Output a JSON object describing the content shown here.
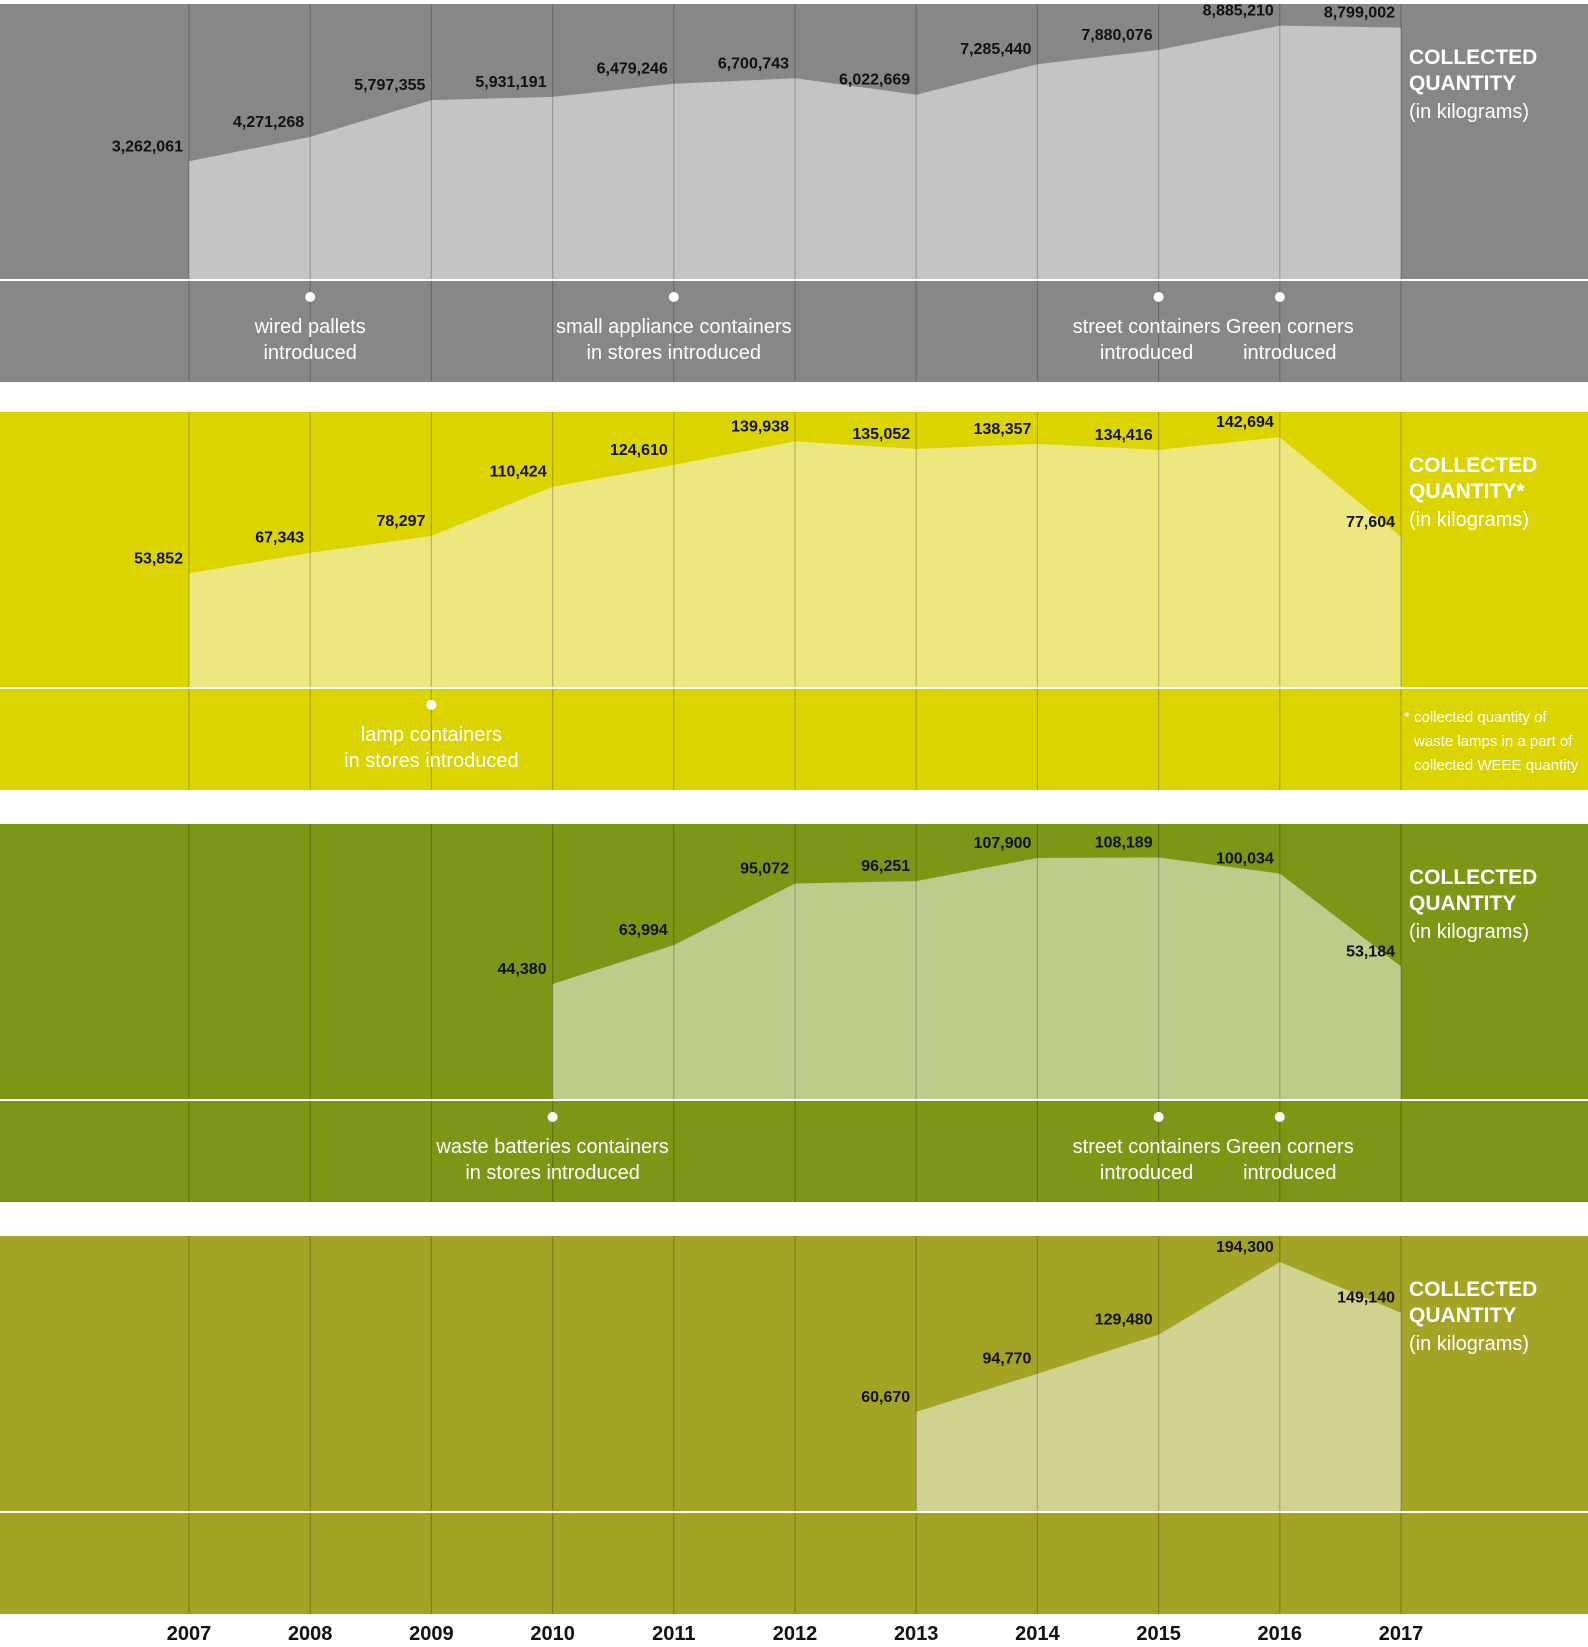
{
  "colors": {
    "panel_bg": [
      "#878787",
      "#dcd400",
      "#7c9716",
      "#a3a325"
    ],
    "area_fill": [
      "#c4c4c4",
      "#ece77f",
      "#bdcc8a",
      "#d2d290"
    ],
    "value_text": "#111111",
    "label_text": "#ffffff"
  },
  "chart_data": [
    {
      "type": "area",
      "title": "COLLECTED QUANTITY",
      "unit": "(in kilograms)",
      "x": [
        2007,
        2008,
        2009,
        2010,
        2011,
        2012,
        2013,
        2014,
        2015,
        2016,
        2017
      ],
      "values": [
        3262061,
        4271268,
        5797355,
        5931191,
        6479246,
        6700743,
        6022669,
        7285440,
        7880076,
        8885210,
        8799002
      ],
      "value_labels": [
        "3,262,061",
        "4,271,268",
        "5,797,355",
        "5,931,191",
        "6,479,246",
        "6,700,743",
        "6,022,669",
        "7,285,440",
        "7,880,076",
        "8,885,210",
        "8,799,002"
      ],
      "milestones": [
        {
          "year": 2008,
          "lines": [
            "wired pallets",
            "introduced"
          ]
        },
        {
          "year": 2011,
          "lines": [
            "small appliance containers",
            "in stores introduced"
          ]
        },
        {
          "year": 2015,
          "lines": [
            "street containers",
            "introduced"
          ]
        },
        {
          "year": 2016,
          "lines": [
            "Green corners",
            "introduced"
          ]
        }
      ]
    },
    {
      "type": "area",
      "title": "COLLECTED QUANTITY*",
      "unit": "(in kilograms)",
      "x": [
        2007,
        2008,
        2009,
        2010,
        2011,
        2012,
        2013,
        2014,
        2015,
        2016,
        2017
      ],
      "values": [
        53852,
        67343,
        78297,
        110424,
        124610,
        139938,
        135052,
        138357,
        134416,
        142694,
        77604
      ],
      "value_labels": [
        "53,852",
        "67,343",
        "78,297",
        "110,424",
        "124,610",
        "139,938",
        "135,052",
        "138,357",
        "134,416",
        "142,694",
        "77,604"
      ],
      "milestones": [
        {
          "year": 2009,
          "lines": [
            "lamp containers",
            "in stores introduced"
          ]
        }
      ],
      "footnote": [
        "* collected quantity of",
        "waste lamps in a part of",
        "collected WEEE quantity"
      ]
    },
    {
      "type": "area",
      "title": "COLLECTED QUANTITY",
      "unit": "(in kilograms)",
      "x": [
        2010,
        2011,
        2012,
        2013,
        2014,
        2015,
        2016,
        2017
      ],
      "values": [
        44380,
        63994,
        95072,
        96251,
        107900,
        108189,
        100034,
        53184
      ],
      "value_labels": [
        "44,380",
        "63,994",
        "95,072",
        "96,251",
        "107,900",
        "108,189",
        "100,034",
        "53,184"
      ],
      "milestones": [
        {
          "year": 2010,
          "lines": [
            "waste batteries containers",
            "in stores introduced"
          ]
        },
        {
          "year": 2015,
          "lines": [
            "street containers",
            "introduced"
          ]
        },
        {
          "year": 2016,
          "lines": [
            "Green corners",
            "introduced"
          ]
        }
      ]
    },
    {
      "type": "area",
      "title": "COLLECTED QUANTITY",
      "unit": "(in kilograms)",
      "x": [
        2013,
        2014,
        2015,
        2016,
        2017
      ],
      "values": [
        60670,
        94770,
        129480,
        194300,
        149140
      ],
      "value_labels": [
        "60,670",
        "94,770",
        "129,480",
        "194,300",
        "149,140"
      ],
      "milestones": []
    }
  ],
  "x_axis": {
    "years": [
      "2007",
      "2008",
      "2009",
      "2010",
      "2011",
      "2012",
      "2013",
      "2014",
      "2015",
      "2016",
      "2017"
    ]
  }
}
